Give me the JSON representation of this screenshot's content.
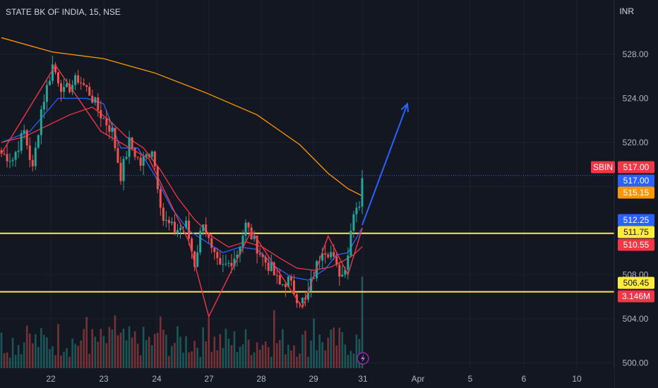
{
  "chart_data": {
    "type": "candlestick",
    "title": "STATE BK OF INDIA, 15, NSE",
    "currency": "INR",
    "symbol": "SBIN",
    "x_tick_labels": [
      "22",
      "23",
      "24",
      "27",
      "28",
      "29",
      "31",
      "Apr",
      "5",
      "6",
      "10"
    ],
    "y_tick_labels": [
      "528.00",
      "524.00",
      "520.00",
      "516.00",
      "512.00",
      "508.00",
      "504.00",
      "500.00"
    ],
    "ylim": [
      499,
      531
    ],
    "price_tags": [
      {
        "label": "517.00",
        "value": 517.0,
        "color": "#f23645",
        "symbol_label": "SBIN"
      },
      {
        "label": "517.00",
        "value": 517.0,
        "color": "#2962ff"
      },
      {
        "label": "515.15",
        "value": 515.15,
        "color": "#ff9800"
      },
      {
        "label": "512.25",
        "value": 512.25,
        "color": "#2962ff"
      },
      {
        "label": "511.75",
        "value": 511.75,
        "color": "#ffeb3b"
      },
      {
        "label": "510.55",
        "value": 510.55,
        "color": "#f23645"
      },
      {
        "label": "506.45",
        "value": 506.45,
        "color": "#ffeb3b"
      },
      {
        "label": "3.146M",
        "value": 504.3,
        "color": "#f23645"
      }
    ],
    "horizontal_lines": [
      {
        "value": 517.0,
        "color": "#2962ff",
        "style": "dotted"
      },
      {
        "value": 511.75,
        "color": "#ffeb3b",
        "style": "solid"
      },
      {
        "value": 506.45,
        "color": "#ffeb3b",
        "style": "solid"
      }
    ],
    "close_anchors": [
      [
        0,
        519
      ],
      [
        4,
        518.5
      ],
      [
        8,
        521
      ],
      [
        11,
        517.5
      ],
      [
        14,
        523
      ],
      [
        18,
        527
      ],
      [
        22,
        524.5
      ],
      [
        27,
        525.8
      ],
      [
        31,
        524.5
      ],
      [
        35,
        522.5
      ],
      [
        39,
        521
      ],
      [
        42,
        517
      ],
      [
        45,
        520
      ],
      [
        49,
        518
      ],
      [
        53,
        519.5
      ],
      [
        57,
        513
      ],
      [
        61,
        512
      ],
      [
        65,
        512.5
      ],
      [
        68,
        509
      ],
      [
        71,
        513
      ],
      [
        74,
        510
      ],
      [
        77,
        508.5
      ],
      [
        80,
        509
      ],
      [
        83,
        510
      ],
      [
        86,
        512.5
      ],
      [
        89,
        511
      ],
      [
        92,
        509.5
      ],
      [
        95,
        508.5
      ],
      [
        98,
        507
      ],
      [
        101,
        507.5
      ],
      [
        104,
        506
      ],
      [
        107,
        505.5
      ],
      [
        110,
        508
      ],
      [
        113,
        510.5
      ],
      [
        116,
        510
      ],
      [
        118,
        508.5
      ],
      [
        120,
        508
      ],
      [
        122,
        510
      ],
      [
        124,
        514
      ],
      [
        126,
        514.5
      ],
      [
        127,
        517
      ]
    ],
    "candle_count": 128,
    "series": [
      {
        "name": "",
        "color": "#ff9800",
        "points": [
          [
            0,
            529.5
          ],
          [
            18,
            528.2
          ],
          [
            36,
            527.6
          ],
          [
            54,
            526.3
          ],
          [
            72,
            524.5
          ],
          [
            90,
            522.5
          ],
          [
            105,
            519.8
          ],
          [
            115,
            517.2
          ],
          [
            122,
            515.8
          ],
          [
            127,
            515.15
          ]
        ]
      },
      {
        "name": "",
        "color": "#2962ff",
        "points": [
          [
            0,
            520
          ],
          [
            10,
            521
          ],
          [
            20,
            524
          ],
          [
            30,
            524
          ],
          [
            36,
            523.5
          ],
          [
            42,
            519.5
          ],
          [
            48,
            519.5
          ],
          [
            54,
            517
          ],
          [
            60,
            514
          ],
          [
            66,
            512
          ],
          [
            72,
            511
          ],
          [
            78,
            510
          ],
          [
            84,
            510.5
          ],
          [
            90,
            510.3
          ],
          [
            96,
            508.8
          ],
          [
            102,
            507.8
          ],
          [
            108,
            507.5
          ],
          [
            114,
            508.5
          ],
          [
            118,
            509.8
          ],
          [
            122,
            510
          ],
          [
            127,
            512.25
          ]
        ]
      },
      {
        "name": "",
        "color": "#f23645",
        "points": [
          [
            0,
            520
          ],
          [
            8,
            520.5
          ],
          [
            16,
            521.5
          ],
          [
            24,
            522.5
          ],
          [
            32,
            523.2
          ],
          [
            38,
            522
          ],
          [
            44,
            520.5
          ],
          [
            50,
            519.5
          ],
          [
            56,
            517.5
          ],
          [
            62,
            515
          ],
          [
            68,
            513
          ],
          [
            74,
            511.5
          ],
          [
            80,
            510.5
          ],
          [
            86,
            511
          ],
          [
            92,
            510.5
          ],
          [
            98,
            509.5
          ],
          [
            104,
            508.6
          ],
          [
            110,
            508.4
          ],
          [
            116,
            508.7
          ],
          [
            120,
            509.2
          ],
          [
            124,
            509.8
          ],
          [
            127,
            510.55
          ]
        ]
      }
    ],
    "pattern_line": {
      "color": "#f23645",
      "points": [
        [
          0,
          519
        ],
        [
          19,
          527
        ],
        [
          35,
          521
        ],
        [
          52,
          518.5
        ],
        [
          66,
          511
        ],
        [
          73,
          504.2
        ],
        [
          88,
          512
        ],
        [
          106,
          505
        ],
        [
          115,
          511.5
        ],
        [
          122,
          508
        ],
        [
          127,
          512.2
        ]
      ]
    },
    "arrow": {
      "color": "#2962ff",
      "from": [
        127,
        512.5
      ],
      "to_x_label": "Apr",
      "to_value": 523.5
    }
  }
}
